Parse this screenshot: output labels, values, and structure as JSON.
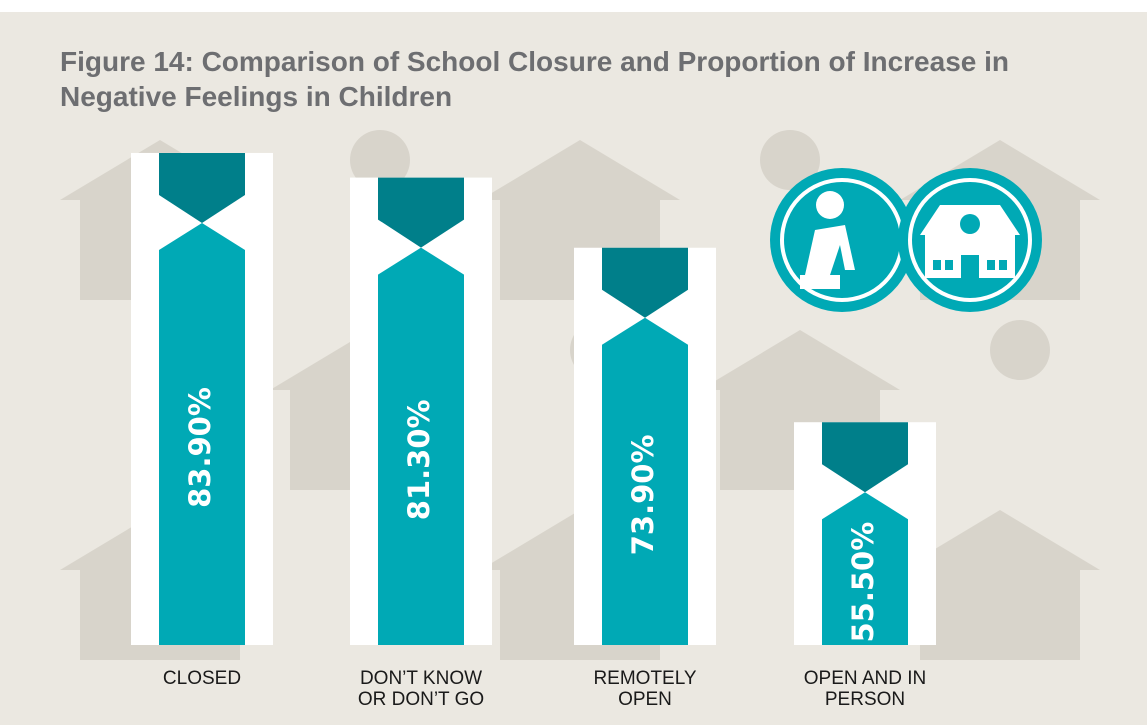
{
  "chart_data": {
    "type": "hourglass-bar",
    "title": "Figure 14: Comparison of School Closure and Proportion of Increase in Negative Feelings in Children",
    "categories": [
      "CLOSED",
      "DON’T KNOW OR DON’T GO",
      "REMOTELY OPEN",
      "OPEN AND IN PERSON"
    ],
    "values": [
      83.9,
      81.3,
      73.9,
      55.5
    ],
    "value_labels": [
      "83.90%",
      "81.30%",
      "73.90%",
      "55.50%"
    ],
    "color": "#00a9b5",
    "cap_color": "#007f8a",
    "ylim": [
      32,
      84
    ]
  }
}
